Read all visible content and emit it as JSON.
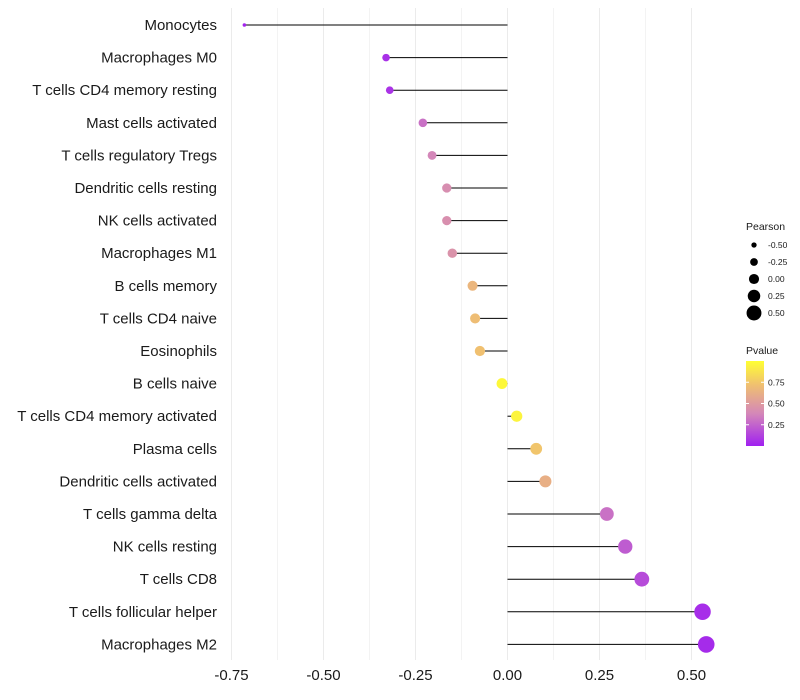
{
  "chart_data": {
    "type": "lollipop",
    "title": "",
    "xlabel": "",
    "ylabel": "",
    "xlim": [
      -0.75,
      0.56
    ],
    "x_ticks": [
      -0.75,
      -0.5,
      -0.25,
      0.0,
      0.25,
      0.5
    ],
    "x_tick_labels": [
      "-0.75",
      "-0.50",
      "-0.25",
      "0.00",
      "0.25",
      "0.50"
    ],
    "grid": "vertical",
    "categories": [
      "Monocytes",
      "Macrophages M0",
      "T cells CD4 memory resting",
      "Mast cells activated",
      "T cells regulatory  Tregs ",
      "Dendritic cells resting",
      "NK cells activated",
      "Macrophages M1",
      "B cells memory",
      "T cells CD4 naive",
      "Eosinophils",
      "B cells naive",
      "T cells CD4 memory activated",
      "Plasma cells",
      "Dendritic cells activated",
      "T cells gamma delta",
      "NK cells resting",
      "T cells CD8",
      "T cells follicular helper",
      "Macrophages M2"
    ],
    "pearson": [
      -0.715,
      -0.33,
      -0.32,
      -0.23,
      -0.205,
      -0.165,
      -0.165,
      -0.15,
      -0.095,
      -0.088,
      -0.075,
      -0.015,
      0.025,
      0.078,
      0.103,
      0.27,
      0.32,
      0.365,
      0.53,
      0.54
    ],
    "pvalue": [
      0.02,
      0.06,
      0.07,
      0.3,
      0.38,
      0.42,
      0.43,
      0.45,
      0.66,
      0.7,
      0.72,
      0.97,
      0.95,
      0.74,
      0.62,
      0.3,
      0.22,
      0.16,
      0.05,
      0.04
    ],
    "size_legend": {
      "title": "Pearson",
      "values": [
        -0.5,
        -0.25,
        0.0,
        0.25,
        0.5
      ],
      "labels": [
        "-0.50",
        "-0.25",
        "0.00",
        "0.25",
        "0.50"
      ]
    },
    "color_legend": {
      "title": "Pvalue",
      "range": [
        0.0,
        1.0
      ],
      "ticks": [
        0.25,
        0.5,
        0.75
      ],
      "labels": [
        "0.25",
        "0.50",
        "0.75"
      ],
      "colors": [
        "#a020f0",
        "#d487b9",
        "#f0c070",
        "#ffff33"
      ]
    },
    "colors": {
      "stem": "#000000",
      "grid": "#ebebeb"
    }
  }
}
